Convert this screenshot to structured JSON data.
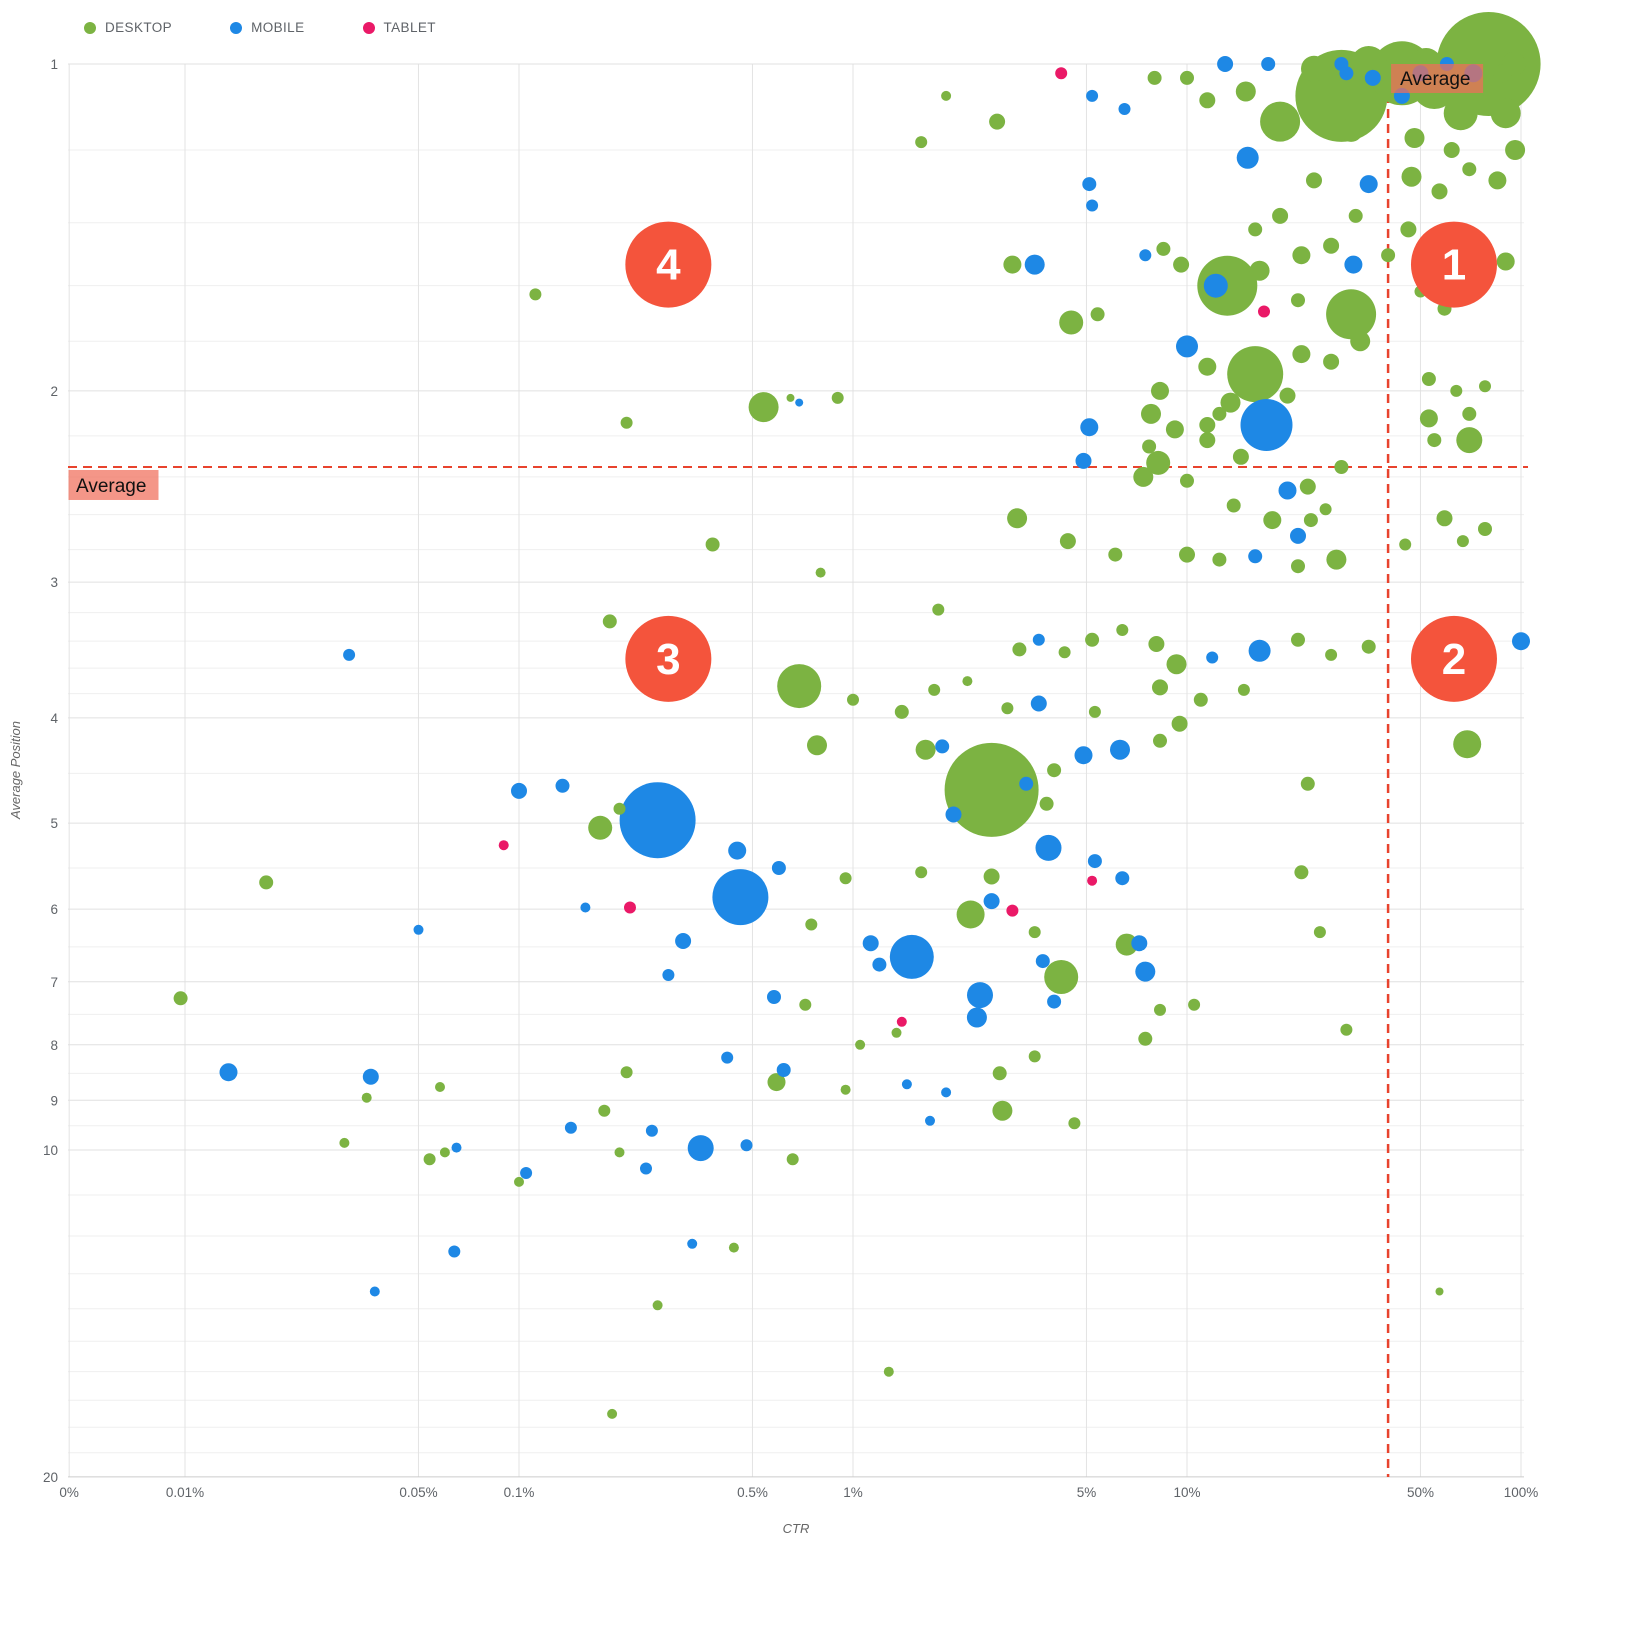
{
  "chart_data": {
    "type": "scatter",
    "subtype": "bubble",
    "title": "",
    "xlabel": "CTR",
    "ylabel": "Average Position",
    "x_axis": {
      "scale": "log",
      "unit": "percent",
      "ticks": [
        {
          "v": 0.0045,
          "label": "0%"
        },
        {
          "v": 0.01,
          "label": "0.01%"
        },
        {
          "v": 0.05,
          "label": "0.05%"
        },
        {
          "v": 0.1,
          "label": "0.1%"
        },
        {
          "v": 0.5,
          "label": "0.5%"
        },
        {
          "v": 1,
          "label": "1%"
        },
        {
          "v": 5,
          "label": "5%"
        },
        {
          "v": 10,
          "label": "10%"
        },
        {
          "v": 50,
          "label": "50%"
        },
        {
          "v": 100,
          "label": "100%"
        }
      ]
    },
    "y_axis": {
      "scale": "log",
      "inverted": true,
      "major_ticks": [
        1,
        2,
        3,
        4,
        5,
        6,
        7,
        8,
        9,
        10,
        20
      ],
      "minor_ticks": [
        1.2,
        1.4,
        1.6,
        1.8,
        2.2,
        2.4,
        2.6,
        2.8,
        3.2,
        3.4,
        3.6,
        3.8,
        4.5,
        5.5,
        6.5,
        7.5,
        8.5,
        9.5,
        11,
        12,
        13,
        14,
        15,
        16,
        17,
        18,
        19
      ]
    },
    "averages": {
      "label": "Average",
      "ctr_pct": 40,
      "position": 2.35
    },
    "quadrants": [
      {
        "label": "1",
        "ctr_pct": 63,
        "position": 1.53
      },
      {
        "label": "2",
        "ctr_pct": 63,
        "position": 3.53
      },
      {
        "label": "3",
        "ctr_pct": 0.28,
        "position": 3.53
      },
      {
        "label": "4",
        "ctr_pct": 0.28,
        "position": 1.53
      }
    ],
    "colors": {
      "quadrant_marker": "#f4543c",
      "average_line": "#e8432d",
      "average_label_bg": "rgba(240,110,90,0.72)",
      "gridline_major": "#e0e0e0",
      "gridline_minor": "#efefef",
      "tick_text": "#5f6368"
    },
    "series": [
      {
        "code": "D",
        "name": "DESKTOP",
        "color": "#7cb342"
      },
      {
        "code": "M",
        "name": "MOBILE",
        "color": "#1e88e5"
      },
      {
        "code": "T",
        "name": "TABLET",
        "color": "#ea1967"
      }
    ],
    "point_format": [
      "ctr_pct",
      "avg_position",
      "radius_px",
      "device_code"
    ],
    "points": [
      [
        80,
        1.0,
        52,
        "D"
      ],
      [
        29,
        1.07,
        46,
        "D"
      ],
      [
        44,
        1.02,
        32,
        "D"
      ],
      [
        55,
        1.05,
        22,
        "D"
      ],
      [
        66,
        1.11,
        17,
        "D"
      ],
      [
        90,
        1.11,
        15,
        "D"
      ],
      [
        52,
        1.0,
        16,
        "D"
      ],
      [
        35,
        1.0,
        18,
        "D"
      ],
      [
        24,
        1.01,
        13,
        "D"
      ],
      [
        19,
        1.13,
        20,
        "D"
      ],
      [
        31,
        1.15,
        12,
        "D"
      ],
      [
        48,
        1.17,
        10,
        "D"
      ],
      [
        62,
        1.2,
        8,
        "D"
      ],
      [
        95,
        1.0,
        12,
        "D"
      ],
      [
        80,
        1.05,
        10,
        "D"
      ],
      [
        88,
        1.02,
        9,
        "D"
      ],
      [
        72,
        1.02,
        9,
        "M"
      ],
      [
        50,
        1.02,
        8,
        "M"
      ],
      [
        60,
        1.0,
        7,
        "M"
      ],
      [
        36,
        1.03,
        8,
        "M"
      ],
      [
        29,
        1.0,
        7,
        "M"
      ],
      [
        13,
        1.0,
        8,
        "M"
      ],
      [
        17.5,
        1.0,
        7,
        "M"
      ],
      [
        44,
        1.07,
        8,
        "M"
      ],
      [
        30,
        1.02,
        7,
        "M"
      ],
      [
        4.2,
        1.02,
        6,
        "T"
      ],
      [
        5.2,
        1.07,
        6,
        "M"
      ],
      [
        6.5,
        1.1,
        6,
        "M"
      ],
      [
        8,
        1.03,
        7,
        "D"
      ],
      [
        10,
        1.03,
        7,
        "D"
      ],
      [
        11.5,
        1.08,
        8,
        "D"
      ],
      [
        15,
        1.06,
        10,
        "D"
      ],
      [
        15.2,
        1.22,
        11,
        "M"
      ],
      [
        35,
        1.29,
        9,
        "M"
      ],
      [
        24,
        1.28,
        8,
        "D"
      ],
      [
        47,
        1.27,
        10,
        "D"
      ],
      [
        57,
        1.31,
        8,
        "D"
      ],
      [
        70,
        1.25,
        7,
        "D"
      ],
      [
        85,
        1.28,
        9,
        "D"
      ],
      [
        96,
        1.2,
        10,
        "D"
      ],
      [
        2.7,
        1.13,
        8,
        "D"
      ],
      [
        1.9,
        1.07,
        5,
        "D"
      ],
      [
        1.6,
        1.18,
        6,
        "D"
      ],
      [
        5.1,
        1.29,
        7,
        "M"
      ],
      [
        5.2,
        1.35,
        6,
        "M"
      ],
      [
        3.5,
        1.53,
        10,
        "M"
      ],
      [
        3.0,
        1.53,
        9,
        "D"
      ],
      [
        4.5,
        1.73,
        12,
        "D"
      ],
      [
        5.4,
        1.7,
        7,
        "D"
      ],
      [
        7.5,
        1.5,
        6,
        "M"
      ],
      [
        8.5,
        1.48,
        7,
        "D"
      ],
      [
        9.6,
        1.53,
        8,
        "D"
      ],
      [
        10,
        1.82,
        11,
        "M"
      ],
      [
        11.5,
        1.9,
        9,
        "D"
      ],
      [
        8.3,
        2.0,
        9,
        "D"
      ],
      [
        7.8,
        2.1,
        10,
        "D"
      ],
      [
        9.2,
        2.17,
        9,
        "D"
      ],
      [
        11.5,
        2.15,
        8,
        "D"
      ],
      [
        12.5,
        2.1,
        7,
        "D"
      ],
      [
        13.5,
        2.05,
        10,
        "D"
      ],
      [
        20,
        2.02,
        8,
        "D"
      ],
      [
        22,
        1.85,
        9,
        "D"
      ],
      [
        27,
        1.88,
        8,
        "D"
      ],
      [
        33,
        1.8,
        10,
        "D"
      ],
      [
        22,
        1.5,
        9,
        "D"
      ],
      [
        27,
        1.47,
        8,
        "D"
      ],
      [
        31.5,
        1.53,
        9,
        "M"
      ],
      [
        40,
        1.5,
        7,
        "D"
      ],
      [
        46,
        1.42,
        8,
        "D"
      ],
      [
        32,
        1.38,
        7,
        "D"
      ],
      [
        19,
        1.38,
        8,
        "D"
      ],
      [
        16,
        1.42,
        7,
        "D"
      ],
      [
        21.5,
        1.65,
        7,
        "D"
      ],
      [
        17,
        1.69,
        6,
        "T"
      ],
      [
        50,
        1.62,
        6,
        "D"
      ],
      [
        55,
        1.53,
        6,
        "D"
      ],
      [
        59,
        1.68,
        7,
        "D"
      ],
      [
        69,
        1.48,
        6,
        "D"
      ],
      [
        80,
        1.55,
        7,
        "D"
      ],
      [
        90,
        1.52,
        9,
        "D"
      ],
      [
        13.2,
        1.6,
        30,
        "D"
      ],
      [
        12.2,
        1.6,
        12,
        "M"
      ],
      [
        16.5,
        1.55,
        10,
        "D"
      ],
      [
        31,
        1.7,
        25,
        "D"
      ],
      [
        16,
        1.93,
        28,
        "D"
      ],
      [
        17.3,
        2.15,
        26,
        "M"
      ],
      [
        0.112,
        1.63,
        6,
        "D"
      ],
      [
        53,
        1.95,
        7,
        "D"
      ],
      [
        64,
        2.0,
        6,
        "D"
      ],
      [
        70,
        2.1,
        7,
        "D"
      ],
      [
        78,
        1.98,
        6,
        "D"
      ],
      [
        53,
        2.12,
        9,
        "D"
      ],
      [
        55,
        2.22,
        7,
        "D"
      ],
      [
        70,
        2.22,
        13,
        "D"
      ],
      [
        0.9,
        2.03,
        6,
        "D"
      ],
      [
        0.65,
        2.03,
        4,
        "D"
      ],
      [
        0.69,
        2.05,
        4,
        "M"
      ],
      [
        0.54,
        2.07,
        15,
        "D"
      ],
      [
        0.21,
        2.14,
        6,
        "D"
      ],
      [
        5.1,
        2.16,
        9,
        "M"
      ],
      [
        7.7,
        2.25,
        7,
        "D"
      ],
      [
        11.5,
        2.22,
        8,
        "D"
      ],
      [
        14.5,
        2.3,
        8,
        "D"
      ],
      [
        20,
        2.47,
        9,
        "M"
      ],
      [
        23,
        2.45,
        8,
        "D"
      ],
      [
        29,
        2.35,
        7,
        "D"
      ],
      [
        10,
        2.42,
        7,
        "D"
      ],
      [
        8.2,
        2.33,
        12,
        "D"
      ],
      [
        7.4,
        2.4,
        10,
        "D"
      ],
      [
        4.9,
        2.32,
        8,
        "M"
      ],
      [
        13.8,
        2.55,
        7,
        "D"
      ],
      [
        18,
        2.63,
        9,
        "D"
      ],
      [
        21.5,
        2.72,
        8,
        "M"
      ],
      [
        23.5,
        2.63,
        7,
        "D"
      ],
      [
        26,
        2.57,
        6,
        "D"
      ],
      [
        3.1,
        2.62,
        10,
        "D"
      ],
      [
        4.4,
        2.75,
        8,
        "D"
      ],
      [
        6.1,
        2.83,
        7,
        "D"
      ],
      [
        10,
        2.83,
        8,
        "D"
      ],
      [
        12.5,
        2.86,
        7,
        "D"
      ],
      [
        16,
        2.84,
        7,
        "M"
      ],
      [
        21.5,
        2.9,
        7,
        "D"
      ],
      [
        28,
        2.86,
        10,
        "D"
      ],
      [
        45,
        2.77,
        6,
        "D"
      ],
      [
        59,
        2.62,
        8,
        "D"
      ],
      [
        67,
        2.75,
        6,
        "D"
      ],
      [
        78,
        2.68,
        7,
        "D"
      ],
      [
        0.38,
        2.77,
        7,
        "D"
      ],
      [
        0.8,
        2.94,
        5,
        "D"
      ],
      [
        1.8,
        3.18,
        6,
        "D"
      ],
      [
        0.187,
        3.26,
        7,
        "D"
      ],
      [
        0.031,
        3.5,
        6,
        "M"
      ],
      [
        0.69,
        3.74,
        22,
        "D"
      ],
      [
        1.0,
        3.85,
        6,
        "D"
      ],
      [
        1.4,
        3.95,
        7,
        "D"
      ],
      [
        1.75,
        3.77,
        6,
        "D"
      ],
      [
        3.15,
        3.46,
        7,
        "D"
      ],
      [
        3.6,
        3.39,
        6,
        "M"
      ],
      [
        4.3,
        3.48,
        6,
        "D"
      ],
      [
        5.2,
        3.39,
        7,
        "D"
      ],
      [
        6.4,
        3.32,
        6,
        "D"
      ],
      [
        8.1,
        3.42,
        8,
        "D"
      ],
      [
        9.3,
        3.57,
        10,
        "D"
      ],
      [
        11.9,
        3.52,
        6,
        "M"
      ],
      [
        16.5,
        3.47,
        11,
        "M"
      ],
      [
        21.5,
        3.39,
        7,
        "D"
      ],
      [
        27,
        3.5,
        6,
        "D"
      ],
      [
        35,
        3.44,
        7,
        "D"
      ],
      [
        100,
        3.4,
        9,
        "M"
      ],
      [
        8.3,
        3.75,
        8,
        "D"
      ],
      [
        11,
        3.85,
        7,
        "D"
      ],
      [
        14.8,
        3.77,
        6,
        "D"
      ],
      [
        3.6,
        3.88,
        8,
        "M"
      ],
      [
        2.9,
        3.92,
        6,
        "D"
      ],
      [
        2.2,
        3.7,
        5,
        "D"
      ],
      [
        5.3,
        3.95,
        6,
        "D"
      ],
      [
        0.78,
        4.24,
        10,
        "D"
      ],
      [
        1.65,
        4.28,
        10,
        "D"
      ],
      [
        1.85,
        4.25,
        7,
        "M"
      ],
      [
        2.6,
        4.66,
        47,
        "D"
      ],
      [
        3.3,
        4.6,
        7,
        "M"
      ],
      [
        4.9,
        4.33,
        9,
        "M"
      ],
      [
        6.3,
        4.28,
        10,
        "M"
      ],
      [
        4.0,
        4.47,
        7,
        "D"
      ],
      [
        8.3,
        4.2,
        7,
        "D"
      ],
      [
        9.5,
        4.05,
        8,
        "D"
      ],
      [
        69,
        4.23,
        14,
        "D"
      ],
      [
        23,
        4.6,
        7,
        "D"
      ],
      [
        0.26,
        4.97,
        38,
        "M"
      ],
      [
        0.175,
        5.05,
        12,
        "D"
      ],
      [
        0.1,
        4.67,
        8,
        "M"
      ],
      [
        0.135,
        4.62,
        7,
        "M"
      ],
      [
        0.2,
        4.85,
        6,
        "D"
      ],
      [
        2.0,
        4.91,
        8,
        "M"
      ],
      [
        3.8,
        4.8,
        7,
        "D"
      ],
      [
        0.09,
        5.24,
        5,
        "T"
      ],
      [
        0.45,
        5.3,
        9,
        "M"
      ],
      [
        0.6,
        5.5,
        7,
        "M"
      ],
      [
        0.46,
        5.85,
        28,
        "M"
      ],
      [
        0.95,
        5.62,
        6,
        "D"
      ],
      [
        1.6,
        5.55,
        6,
        "D"
      ],
      [
        3.85,
        5.27,
        13,
        "M"
      ],
      [
        5.3,
        5.42,
        7,
        "M"
      ],
      [
        6.4,
        5.62,
        7,
        "M"
      ],
      [
        2.6,
        5.6,
        8,
        "D"
      ],
      [
        22,
        5.55,
        7,
        "D"
      ],
      [
        0.0175,
        5.67,
        7,
        "D"
      ],
      [
        0.158,
        5.98,
        5,
        "M"
      ],
      [
        0.215,
        5.98,
        6,
        "T"
      ],
      [
        3.0,
        6.02,
        6,
        "T"
      ],
      [
        5.2,
        5.65,
        5,
        "T"
      ],
      [
        2.6,
        5.9,
        8,
        "M"
      ],
      [
        2.25,
        6.07,
        14,
        "D"
      ],
      [
        1.5,
        6.64,
        22,
        "M"
      ],
      [
        1.13,
        6.45,
        8,
        "M"
      ],
      [
        1.2,
        6.75,
        7,
        "M"
      ],
      [
        0.75,
        6.2,
        6,
        "D"
      ],
      [
        3.5,
        6.3,
        6,
        "D"
      ],
      [
        4.2,
        6.93,
        17,
        "D"
      ],
      [
        6.6,
        6.47,
        11,
        "D"
      ],
      [
        7.2,
        6.45,
        8,
        "M"
      ],
      [
        0.05,
        6.27,
        5,
        "M"
      ],
      [
        0.31,
        6.42,
        8,
        "M"
      ],
      [
        0.28,
        6.9,
        6,
        "M"
      ],
      [
        25,
        6.3,
        6,
        "D"
      ],
      [
        3.7,
        6.7,
        7,
        "M"
      ],
      [
        7.5,
        6.85,
        10,
        "M"
      ],
      [
        0.0097,
        7.25,
        7,
        "D"
      ],
      [
        0.58,
        7.23,
        7,
        "M"
      ],
      [
        0.72,
        7.35,
        6,
        "D"
      ],
      [
        2.4,
        7.2,
        13,
        "M"
      ],
      [
        2.35,
        7.55,
        10,
        "M"
      ],
      [
        4.0,
        7.3,
        7,
        "M"
      ],
      [
        8.3,
        7.43,
        6,
        "D"
      ],
      [
        10.5,
        7.35,
        6,
        "D"
      ],
      [
        1.35,
        7.8,
        5,
        "D"
      ],
      [
        1.4,
        7.62,
        5,
        "T"
      ],
      [
        30,
        7.75,
        6,
        "D"
      ],
      [
        7.5,
        7.9,
        7,
        "D"
      ],
      [
        1.05,
        8.0,
        5,
        "D"
      ],
      [
        0.0135,
        8.48,
        9,
        "M"
      ],
      [
        0.036,
        8.56,
        8,
        "M"
      ],
      [
        0.21,
        8.48,
        6,
        "D"
      ],
      [
        0.42,
        8.22,
        6,
        "M"
      ],
      [
        0.62,
        8.44,
        7,
        "M"
      ],
      [
        0.59,
        8.66,
        9,
        "D"
      ],
      [
        0.95,
        8.8,
        5,
        "D"
      ],
      [
        1.45,
        8.7,
        5,
        "M"
      ],
      [
        1.9,
        8.85,
        5,
        "M"
      ],
      [
        2.75,
        8.5,
        7,
        "D"
      ],
      [
        3.5,
        8.2,
        6,
        "D"
      ],
      [
        0.035,
        8.95,
        5,
        "D"
      ],
      [
        0.058,
        8.75,
        5,
        "D"
      ],
      [
        0.143,
        9.54,
        6,
        "M"
      ],
      [
        0.18,
        9.2,
        6,
        "D"
      ],
      [
        0.25,
        9.6,
        6,
        "M"
      ],
      [
        0.35,
        9.96,
        13,
        "M"
      ],
      [
        0.48,
        9.9,
        6,
        "M"
      ],
      [
        2.8,
        9.2,
        10,
        "D"
      ],
      [
        4.6,
        9.45,
        6,
        "D"
      ],
      [
        1.7,
        9.4,
        5,
        "M"
      ],
      [
        0.03,
        9.85,
        5,
        "D"
      ],
      [
        0.054,
        10.2,
        6,
        "D"
      ],
      [
        0.06,
        10.05,
        5,
        "D"
      ],
      [
        0.065,
        9.95,
        5,
        "M"
      ],
      [
        0.105,
        10.5,
        6,
        "M"
      ],
      [
        0.2,
        10.05,
        5,
        "D"
      ],
      [
        0.24,
        10.4,
        6,
        "M"
      ],
      [
        0.66,
        10.2,
        6,
        "D"
      ],
      [
        0.1,
        10.7,
        5,
        "D"
      ],
      [
        0.064,
        12.4,
        6,
        "M"
      ],
      [
        0.33,
        12.2,
        5,
        "M"
      ],
      [
        0.44,
        12.3,
        5,
        "D"
      ],
      [
        0.037,
        13.5,
        5,
        "M"
      ],
      [
        0.26,
        13.9,
        5,
        "D"
      ],
      [
        1.28,
        16.0,
        5,
        "D"
      ],
      [
        0.19,
        17.5,
        5,
        "D"
      ],
      [
        57,
        13.5,
        4,
        "D"
      ]
    ]
  }
}
